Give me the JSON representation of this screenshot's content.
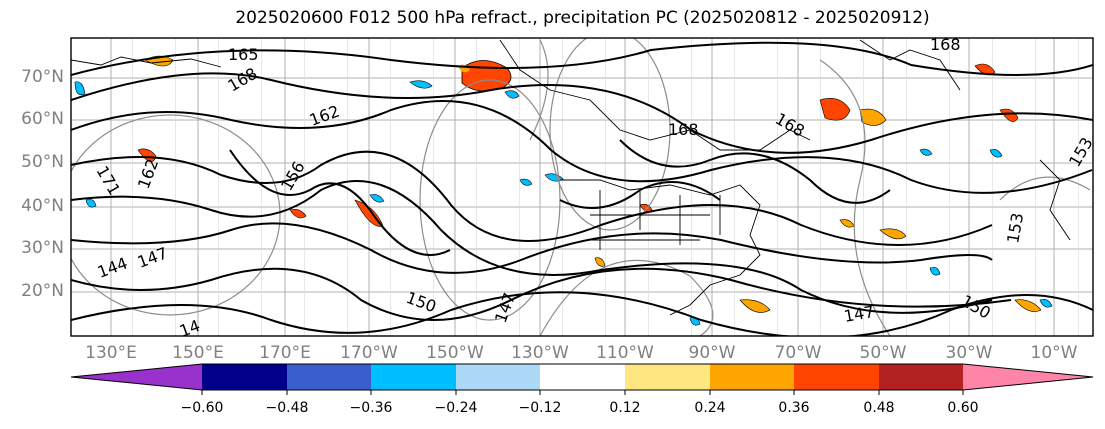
{
  "title": "2025020600 F012 500 hPa refract., precipitation PC (2025020812 - 2025020912)",
  "map": {
    "lat_labels": [
      "70°N",
      "60°N",
      "50°N",
      "40°N",
      "30°N",
      "20°N"
    ],
    "lon_labels": [
      "130°E",
      "150°E",
      "170°E",
      "170°W",
      "150°W",
      "130°W",
      "110°W",
      "90°W",
      "70°W",
      "50°W",
      "30°W",
      "10°W"
    ],
    "contour_labels": [
      "165",
      "168",
      "168",
      "162",
      "168",
      "168",
      "156",
      "153",
      "144",
      "147",
      "150",
      "147",
      "150",
      "153",
      "147",
      "14",
      "162",
      "171"
    ],
    "land_line_color": "#000000",
    "grid_color": "#b0b0b0",
    "anomaly_positive_color": "#ff4500",
    "anomaly_negative_color": "#00bfff"
  },
  "colorbar": {
    "ticks": [
      "−0.60",
      "−0.48",
      "−0.36",
      "−0.24",
      "−0.12",
      "0.12",
      "0.24",
      "0.36",
      "0.48",
      "0.60"
    ],
    "colors": [
      "#9932cc",
      "#00008b",
      "#3a5fcd",
      "#00bfff",
      "#add8f6",
      "#ffffff",
      "#ffe680",
      "#ffa500",
      "#ff4500",
      "#b22222",
      "#ff85a8"
    ]
  }
}
